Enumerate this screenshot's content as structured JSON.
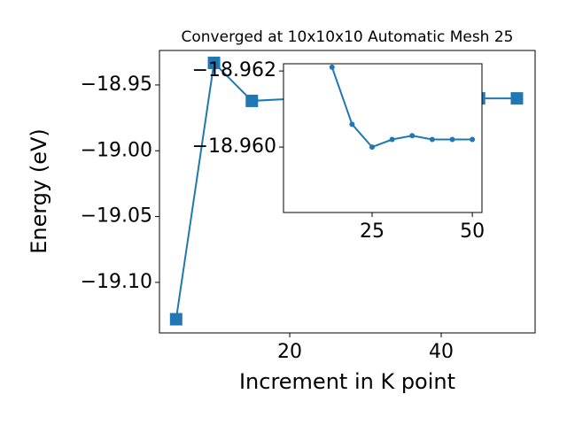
{
  "chart_data": [
    {
      "type": "line",
      "title": "Converged at 10x10x10 Automatic Mesh 25",
      "x_label": "Increment in K point",
      "y_label": "Energy (eV)",
      "x": [
        5,
        10,
        15,
        20,
        25,
        30,
        35,
        40,
        45,
        50
      ],
      "series": [
        {
          "color": "#1f77b4",
          "marker": "square",
          "values": [
            -19.128,
            -18.9332,
            -18.9621,
            -18.9606,
            -18.96,
            -18.9602,
            -18.9603,
            -18.9602,
            -18.9602,
            -18.9602
          ]
        }
      ],
      "xlim": [
        2.8,
        52.4
      ],
      "xticks": [
        20,
        40
      ],
      "ylim": [
        -19.1384,
        -18.9238
      ],
      "yticks": [
        {
          "value": -19.1,
          "label": "−19.10"
        },
        {
          "value": -19.05,
          "label": "−19.05"
        },
        {
          "value": -19.0,
          "label": "−19.00"
        },
        {
          "value": -18.95,
          "label": "−18.95"
        }
      ]
    },
    {
      "type": "line",
      "x": [
        15,
        20,
        25,
        30,
        35,
        40,
        45,
        50
      ],
      "series": [
        {
          "color": "#1f77b4",
          "marker": "circle",
          "values": [
            -18.9621,
            -18.9606,
            -18.96,
            -18.9602,
            -18.9603,
            -18.9602,
            -18.9602,
            -18.9602
          ]
        }
      ],
      "xlim": [
        2.9,
        52.4
      ],
      "xticks": [
        25,
        50
      ],
      "ylim": [
        -18.95828,
        -18.96219
      ],
      "yticks": [
        {
          "value": -18.962,
          "label": "−18.962"
        },
        {
          "value": -18.96,
          "label": "−18.960"
        }
      ]
    }
  ]
}
